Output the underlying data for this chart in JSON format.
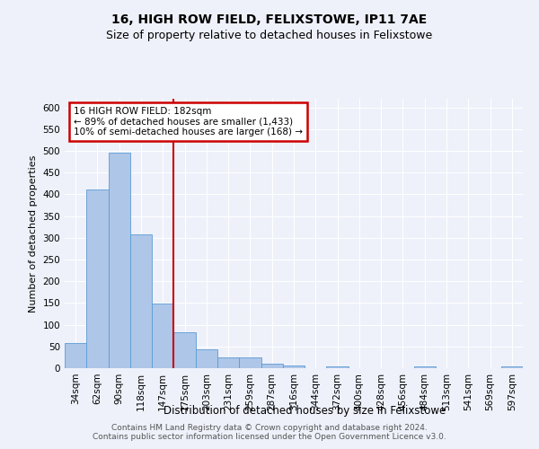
{
  "title1": "16, HIGH ROW FIELD, FELIXSTOWE, IP11 7AE",
  "title2": "Size of property relative to detached houses in Felixstowe",
  "xlabel": "Distribution of detached houses by size in Felixstowe",
  "ylabel": "Number of detached properties",
  "categories": [
    "34sqm",
    "62sqm",
    "90sqm",
    "118sqm",
    "147sqm",
    "175sqm",
    "203sqm",
    "231sqm",
    "259sqm",
    "287sqm",
    "316sqm",
    "344sqm",
    "372sqm",
    "400sqm",
    "428sqm",
    "456sqm",
    "484sqm",
    "513sqm",
    "541sqm",
    "569sqm",
    "597sqm"
  ],
  "values": [
    57,
    411,
    495,
    307,
    148,
    82,
    44,
    25,
    25,
    10,
    7,
    0,
    5,
    0,
    0,
    0,
    5,
    0,
    0,
    0,
    5
  ],
  "bar_color": "#aec6e8",
  "bar_edge_color": "#5b9bd5",
  "vline_x_index": 5,
  "vline_color": "#cc0000",
  "annotation_text": "16 HIGH ROW FIELD: 182sqm\n← 89% of detached houses are smaller (1,433)\n10% of semi-detached houses are larger (168) →",
  "annotation_box_color": "#cc0000",
  "ylim": [
    0,
    620
  ],
  "yticks": [
    0,
    50,
    100,
    150,
    200,
    250,
    300,
    350,
    400,
    450,
    500,
    550,
    600
  ],
  "footer1": "Contains HM Land Registry data © Crown copyright and database right 2024.",
  "footer2": "Contains public sector information licensed under the Open Government Licence v3.0.",
  "bg_color": "#eef1fa",
  "plot_bg_color": "#eef1fa",
  "grid_color": "#ffffff",
  "title1_fontsize": 10,
  "title2_fontsize": 9,
  "xlabel_fontsize": 8.5,
  "ylabel_fontsize": 8,
  "tick_fontsize": 7.5,
  "footer_fontsize": 6.5
}
